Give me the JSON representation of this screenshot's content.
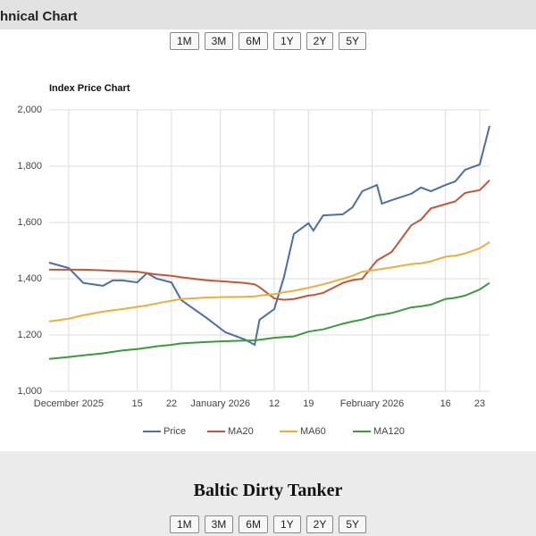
{
  "header": {
    "title": "hnical Chart"
  },
  "buttons_top": [
    "1M",
    "3M",
    "6M",
    "1Y",
    "2Y",
    "5Y"
  ],
  "chart_data": {
    "type": "line",
    "title": "Index Price Chart",
    "x": [
      "2025-11-27",
      "2025-12-01",
      "2025-12-04",
      "2025-12-08",
      "2025-12-10",
      "2025-12-12",
      "2025-12-15",
      "2025-12-17",
      "2025-12-19",
      "2025-12-22",
      "2025-12-24",
      "2025-12-29",
      "2026-01-02",
      "2026-01-06",
      "2026-01-08",
      "2026-01-09",
      "2026-01-12",
      "2026-01-14",
      "2026-01-16",
      "2026-01-19",
      "2026-01-20",
      "2026-01-22",
      "2026-01-26",
      "2026-01-28",
      "2026-01-30",
      "2026-02-02",
      "2026-02-03",
      "2026-02-05",
      "2026-02-09",
      "2026-02-11",
      "2026-02-13",
      "2026-02-16",
      "2026-02-18",
      "2026-02-20",
      "2026-02-23",
      "2026-02-25"
    ],
    "series": [
      {
        "name": "Price",
        "color": "#4a6fa5",
        "values": [
          1457,
          1438,
          1385,
          1375,
          1394,
          1394,
          1387,
          1420,
          1400,
          1387,
          1324,
          1263,
          1210,
          1184,
          1165,
          1254,
          1292,
          1406,
          1559,
          1597,
          1571,
          1625,
          1629,
          1654,
          1711,
          1733,
          1667,
          1679,
          1702,
          1724,
          1711,
          1733,
          1746,
          1787,
          1806,
          1943
        ]
      },
      {
        "name": "MA20",
        "color": "#c0573a",
        "values": [
          1432,
          1432,
          1432,
          1430,
          1428,
          1427,
          1425,
          1420,
          1415,
          1410,
          1405,
          1395,
          1390,
          1385,
          1380,
          1370,
          1330,
          1325,
          1328,
          1340,
          1342,
          1350,
          1385,
          1395,
          1400,
          1465,
          1475,
          1495,
          1590,
          1610,
          1650,
          1665,
          1675,
          1705,
          1715,
          1750
        ]
      },
      {
        "name": "MA60",
        "color": "#e8b03a",
        "values": [
          1248,
          1258,
          1270,
          1283,
          1288,
          1292,
          1300,
          1305,
          1312,
          1322,
          1328,
          1333,
          1335,
          1336,
          1337,
          1340,
          1345,
          1352,
          1357,
          1368,
          1372,
          1380,
          1400,
          1410,
          1425,
          1432,
          1435,
          1440,
          1452,
          1455,
          1462,
          1478,
          1482,
          1490,
          1508,
          1530
        ]
      },
      {
        "name": "MA120",
        "color": "#3b9a3b",
        "values": [
          1115,
          1122,
          1128,
          1135,
          1140,
          1145,
          1150,
          1155,
          1160,
          1165,
          1170,
          1175,
          1178,
          1180,
          1181,
          1183,
          1190,
          1193,
          1195,
          1212,
          1215,
          1220,
          1240,
          1248,
          1255,
          1270,
          1272,
          1278,
          1298,
          1302,
          1308,
          1328,
          1332,
          1340,
          1362,
          1385
        ]
      }
    ],
    "xlim": [
      "2025-11-27",
      "2026-02-25"
    ],
    "xticks": [
      {
        "value": "2025-12-01",
        "label": "December 2025"
      },
      {
        "value": "2025-12-15",
        "label": "15"
      },
      {
        "value": "2025-12-22",
        "label": "22"
      },
      {
        "value": "2026-01-01",
        "label": "January 2026"
      },
      {
        "value": "2026-01-12",
        "label": "12"
      },
      {
        "value": "2026-01-19",
        "label": "19"
      },
      {
        "value": "2026-02-01",
        "label": "February 2026"
      },
      {
        "value": "2026-02-16",
        "label": "16"
      },
      {
        "value": "2026-02-23",
        "label": "23"
      }
    ],
    "ylim": [
      1000,
      2000
    ],
    "yticks": [
      {
        "value": 1000,
        "label": "1,000"
      },
      {
        "value": 1200,
        "label": "1,200"
      },
      {
        "value": 1400,
        "label": "1,400"
      },
      {
        "value": 1600,
        "label": "1,600"
      },
      {
        "value": 1800,
        "label": "1,800"
      },
      {
        "value": 2000,
        "label": "2,000"
      }
    ],
    "grid": true,
    "legend": "bottom"
  },
  "section": {
    "title": "Baltic Dirty Tanker"
  },
  "buttons_bottom": [
    "1M",
    "3M",
    "6M",
    "1Y",
    "2Y",
    "5Y"
  ]
}
